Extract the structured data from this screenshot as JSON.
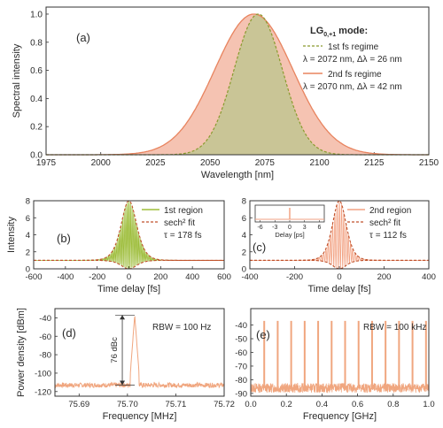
{
  "chart_data": [
    {
      "type": "area",
      "panel_label": "(a)",
      "xlabel": "Wavelength [nm]",
      "ylabel": "Spectral intensity",
      "xlim": [
        1975,
        2150
      ],
      "ylim": [
        0,
        1.05
      ],
      "xticks": [
        1975,
        2000,
        2025,
        2050,
        2075,
        2100,
        2125,
        2150
      ],
      "yticks": [
        0.0,
        0.2,
        0.4,
        0.6,
        0.8,
        1.0
      ],
      "legend_title": "LG",
      "legend_title_sub": "0,+1",
      "legend_title_suffix": " mode:",
      "series": [
        {
          "name": "1st fs regime",
          "note": "λ = 2072 nm,  Δλ = 26 nm",
          "center": 2072,
          "fwhm": 26,
          "color": "#8a9a2e",
          "fill": "#c9c596"
        },
        {
          "name": "2nd fs regime",
          "note": "λ = 2070 nm,  Δλ = 42 nm",
          "center": 2070,
          "fwhm": 42,
          "color": "#e8845f",
          "fill": "#f5c3b2"
        }
      ]
    },
    {
      "type": "area",
      "panel_label": "(b)",
      "xlabel": "Time delay [fs]",
      "ylabel": "Intensity",
      "xlim": [
        -600,
        600
      ],
      "ylim": [
        0,
        8
      ],
      "xticks": [
        -600,
        -400,
        -200,
        0,
        200,
        400,
        600
      ],
      "yticks": [
        0,
        2,
        4,
        6,
        8
      ],
      "legend": [
        "1st region",
        "sech² fit"
      ],
      "tau_label": "τ = 178 fs",
      "peak": 8,
      "baseline": 1,
      "tau": 178,
      "fill_color": "#9dbd3a"
    },
    {
      "type": "area",
      "panel_label": "(c)",
      "xlabel": "Time delay [fs]",
      "xlim": [
        -400,
        400
      ],
      "ylim": [
        0,
        8
      ],
      "xticks": [
        -400,
        -200,
        0,
        200,
        400
      ],
      "yticks": [
        0,
        2,
        4,
        6,
        8
      ],
      "legend": [
        "2nd region",
        "sech² fit"
      ],
      "tau_label": "τ = 112 fs",
      "peak": 8,
      "baseline": 1,
      "tau": 112,
      "fill_color": "#f2a283",
      "inset": {
        "xlabel": "Delay [ps]",
        "xticks": [
          -6,
          -3,
          0,
          3,
          6
        ],
        "xlim": [
          -7,
          7
        ]
      }
    },
    {
      "type": "line",
      "panel_label": "(d)",
      "xlabel": "Frequency [MHz]",
      "ylabel": "Power density [dBm]",
      "xlim": [
        75.685,
        75.72
      ],
      "ylim": [
        -125,
        -30
      ],
      "xticks": [
        75.69,
        75.7,
        75.71,
        75.72
      ],
      "xtick_labels": [
        "75.69",
        "75.70",
        "75.71",
        "75.72"
      ],
      "yticks": [
        -120,
        -100,
        -80,
        -60,
        -40
      ],
      "rbw": "RBW = 100 Hz",
      "annotation": "76 dBc",
      "peak_freq": 75.7015,
      "peak_level": -37,
      "noise_floor": -113,
      "color": "#f0a67f"
    },
    {
      "type": "line",
      "panel_label": "(e)",
      "xlabel": "Frequency [GHz]",
      "xlim": [
        0,
        1.0
      ],
      "ylim": [
        -92,
        -28
      ],
      "xticks": [
        0.0,
        0.2,
        0.4,
        0.6,
        0.8,
        1.0
      ],
      "xtick_labels": [
        "0.0",
        "0.2",
        "0.4",
        "0.6",
        "0.8",
        "1.0"
      ],
      "yticks": [
        -90,
        -80,
        -70,
        -60,
        -50,
        -40
      ],
      "rbw": "RBW = 100 kHz",
      "comb_spacing": 0.0757,
      "peak_level": -37,
      "noise_floor": -86,
      "color": "#f0a67f"
    }
  ]
}
